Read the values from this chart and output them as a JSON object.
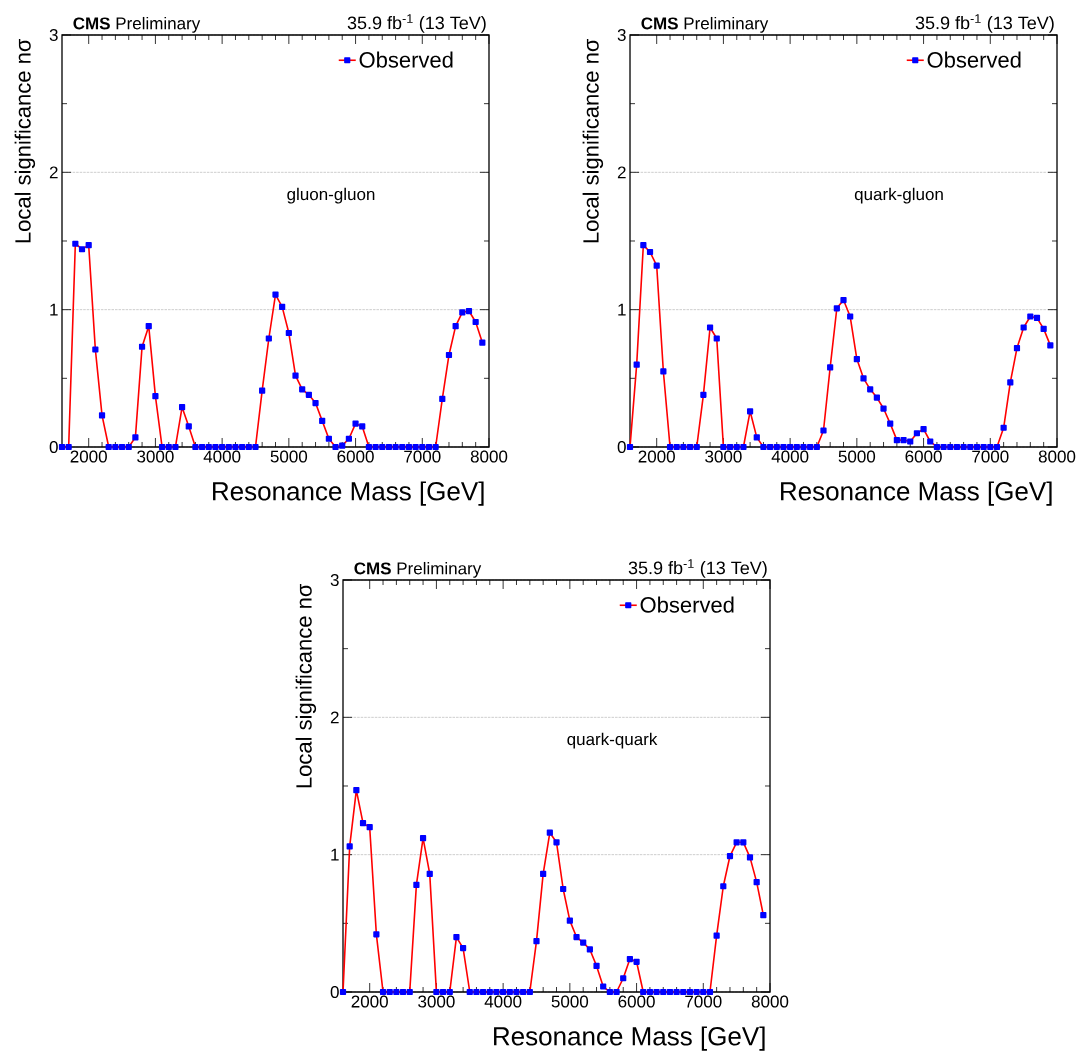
{
  "chart_data": [
    {
      "type": "line",
      "title": "**CMS** Preliminary",
      "subtitle": "35.9 fb$^{-1}$ (13 TeV)",
      "xlabel": "Resonance Mass [GeV]",
      "ylabel": "Local significance nσ",
      "annotations": [
        "gluon-gluon"
      ],
      "x": [
        1600,
        1700,
        1800,
        1900,
        2000,
        2100,
        2200,
        2300,
        2400,
        2500,
        2600,
        2700,
        2800,
        2900,
        3000,
        3100,
        3200,
        3300,
        3400,
        3500,
        3600,
        3700,
        3800,
        3900,
        4000,
        4100,
        4200,
        4300,
        4400,
        4500,
        4600,
        4700,
        4800,
        4900,
        5000,
        5100,
        5200,
        5300,
        5400,
        5500,
        5600,
        5700,
        5800,
        5900,
        6000,
        6100,
        6200,
        6300,
        6400,
        6500,
        6600,
        6700,
        6800,
        6900,
        7000,
        7100,
        7200,
        7300,
        7400,
        7500,
        7600,
        7700,
        7800,
        7900
      ],
      "series": [
        {
          "name": "Observed",
          "color": "#ff0000",
          "values": [
            0,
            0,
            1.48,
            1.44,
            1.47,
            0.71,
            0.23,
            0,
            0,
            0,
            0,
            0.07,
            0.73,
            0.88,
            0.37,
            0,
            0,
            0,
            0.29,
            0.15,
            0,
            0,
            0,
            0,
            0,
            0,
            0,
            0,
            0,
            0,
            0.41,
            0.79,
            1.11,
            1.02,
            0.83,
            0.52,
            0.42,
            0.38,
            0.32,
            0.19,
            0.06,
            0,
            0.01,
            0.06,
            0.17,
            0.15,
            0,
            0,
            0,
            0,
            0,
            0,
            0,
            0,
            0,
            0,
            0,
            0.35,
            0.67,
            0.88,
            0.98,
            0.99,
            0.91,
            0.76
          ]
        }
      ],
      "xlim": [
        1600,
        8000
      ],
      "ylim": [
        0,
        3
      ],
      "xticks": [
        2000,
        3000,
        4000,
        5000,
        6000,
        7000,
        8000
      ],
      "yticks": [
        0,
        1,
        2,
        3
      ],
      "grid": "y",
      "legend": "top right",
      "marker": "square",
      "line_style": "solid"
    },
    {
      "type": "line",
      "title": "**CMS** Preliminary",
      "subtitle": "35.9 fb$^{-1}$ (13 TeV)",
      "xlabel": "Resonance Mass [GeV]",
      "ylabel": "Local significance nσ",
      "annotations": [
        "quark-gluon"
      ],
      "x": [
        1600,
        1700,
        1800,
        1900,
        2000,
        2100,
        2200,
        2300,
        2400,
        2500,
        2600,
        2700,
        2800,
        2900,
        3000,
        3100,
        3200,
        3300,
        3400,
        3500,
        3600,
        3700,
        3800,
        3900,
        4000,
        4100,
        4200,
        4300,
        4400,
        4500,
        4600,
        4700,
        4800,
        4900,
        5000,
        5100,
        5200,
        5300,
        5400,
        5500,
        5600,
        5700,
        5800,
        5900,
        6000,
        6100,
        6200,
        6300,
        6400,
        6500,
        6600,
        6700,
        6800,
        6900,
        7000,
        7100,
        7200,
        7300,
        7400,
        7500,
        7600,
        7700,
        7800,
        7900
      ],
      "series": [
        {
          "name": "Observed",
          "color": "#ff0000",
          "values": [
            0,
            0.6,
            1.47,
            1.42,
            1.32,
            0.55,
            0,
            0,
            0,
            0,
            0,
            0.38,
            0.87,
            0.79,
            0,
            0,
            0,
            0,
            0.26,
            0.07,
            0,
            0,
            0,
            0,
            0,
            0,
            0,
            0,
            0,
            0.12,
            0.58,
            1.01,
            1.07,
            0.95,
            0.64,
            0.5,
            0.42,
            0.36,
            0.28,
            0.17,
            0.05,
            0.05,
            0.04,
            0.1,
            0.13,
            0.04,
            0,
            0,
            0,
            0,
            0,
            0,
            0,
            0,
            0,
            0,
            0.14,
            0.47,
            0.72,
            0.87,
            0.95,
            0.94,
            0.86,
            0.74
          ]
        }
      ],
      "xlim": [
        1600,
        8000
      ],
      "ylim": [
        0,
        3
      ],
      "xticks": [
        2000,
        3000,
        4000,
        5000,
        6000,
        7000,
        8000
      ],
      "yticks": [
        0,
        1,
        2,
        3
      ],
      "grid": "y",
      "legend": "top right",
      "marker": "square",
      "line_style": "solid"
    },
    {
      "type": "line",
      "title": "**CMS** Preliminary",
      "subtitle": "35.9 fb$^{-1}$ (13 TeV)",
      "xlabel": "Resonance Mass [GeV]",
      "ylabel": "Local significance nσ",
      "annotations": [
        "quark-quark"
      ],
      "x": [
        1600,
        1700,
        1800,
        1900,
        2000,
        2100,
        2200,
        2300,
        2400,
        2500,
        2600,
        2700,
        2800,
        2900,
        3000,
        3100,
        3200,
        3300,
        3400,
        3500,
        3600,
        3700,
        3800,
        3900,
        4000,
        4100,
        4200,
        4300,
        4400,
        4500,
        4600,
        4700,
        4800,
        4900,
        5000,
        5100,
        5200,
        5300,
        5400,
        5500,
        5600,
        5700,
        5800,
        5900,
        6000,
        6100,
        6200,
        6300,
        6400,
        6500,
        6600,
        6700,
        6800,
        6900,
        7000,
        7100,
        7200,
        7300,
        7400,
        7500,
        7600,
        7700,
        7800,
        7900
      ],
      "series": [
        {
          "name": "Observed",
          "color": "#ff0000",
          "values": [
            0,
            1.06,
            1.47,
            1.23,
            1.2,
            0.42,
            0,
            0,
            0,
            0,
            0,
            0.78,
            1.12,
            0.86,
            0,
            0,
            0,
            0.4,
            0.32,
            0,
            0,
            0,
            0,
            0,
            0,
            0,
            0,
            0,
            0,
            0.37,
            0.86,
            1.16,
            1.09,
            0.75,
            0.52,
            0.4,
            0.36,
            0.31,
            0.19,
            0.04,
            0,
            0,
            0.1,
            0.24,
            0.22,
            0,
            0,
            0,
            0,
            0,
            0,
            0,
            0,
            0,
            0,
            0,
            0.41,
            0.77,
            0.99,
            1.09,
            1.09,
            0.98,
            0.8,
            0.56
          ]
        }
      ],
      "xlim": [
        1600,
        8000
      ],
      "ylim": [
        0,
        3
      ],
      "xticks": [
        2000,
        3000,
        4000,
        5000,
        6000,
        7000,
        8000
      ],
      "yticks": [
        0,
        1,
        2,
        3
      ],
      "grid": "y",
      "legend": "top right",
      "marker": "square",
      "line_style": "solid"
    }
  ]
}
